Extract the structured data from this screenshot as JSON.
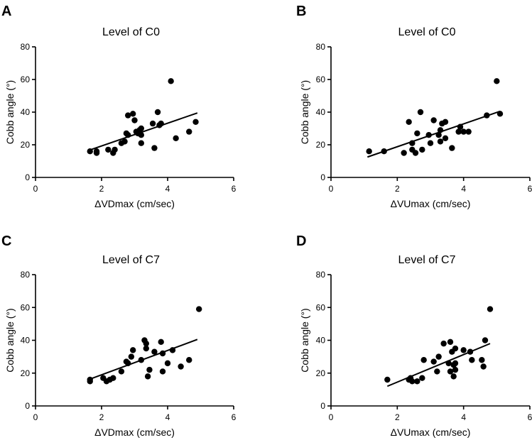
{
  "chart_data": [
    {
      "panel": "A",
      "type": "scatter",
      "title": "Level of C0",
      "xlabel": "ΔVDmax (cm/sec)",
      "ylabel": "Cobb angle (°)",
      "xlim": [
        0,
        6
      ],
      "ylim": [
        0,
        80
      ],
      "xticks": [
        0,
        2,
        4,
        6
      ],
      "yticks": [
        0,
        20,
        40,
        60,
        80
      ],
      "points": [
        [
          1.65,
          16
        ],
        [
          1.85,
          15
        ],
        [
          1.85,
          16
        ],
        [
          2.2,
          17
        ],
        [
          2.35,
          15
        ],
        [
          2.4,
          17
        ],
        [
          2.6,
          21
        ],
        [
          2.7,
          22
        ],
        [
          2.75,
          27
        ],
        [
          2.8,
          26
        ],
        [
          2.8,
          38
        ],
        [
          2.95,
          39
        ],
        [
          3.0,
          35
        ],
        [
          3.05,
          28
        ],
        [
          3.1,
          27
        ],
        [
          3.15,
          29
        ],
        [
          3.2,
          30
        ],
        [
          3.2,
          26
        ],
        [
          3.2,
          21
        ],
        [
          3.55,
          33
        ],
        [
          3.6,
          18
        ],
        [
          3.7,
          40
        ],
        [
          3.75,
          32
        ],
        [
          3.8,
          33
        ],
        [
          4.1,
          59
        ],
        [
          4.25,
          24
        ],
        [
          4.65,
          28
        ],
        [
          4.85,
          34
        ]
      ],
      "fit": {
        "x": [
          1.6,
          4.9
        ],
        "y": [
          16.5,
          39.5
        ]
      }
    },
    {
      "panel": "B",
      "type": "scatter",
      "title": "Level of C0",
      "xlabel": "ΔVUmax (cm/sec)",
      "ylabel": "Cobb angle (°)",
      "xlim": [
        0,
        6
      ],
      "ylim": [
        0,
        80
      ],
      "xticks": [
        0,
        2,
        4,
        6
      ],
      "yticks": [
        0,
        20,
        40,
        60,
        80
      ],
      "points": [
        [
          1.15,
          16
        ],
        [
          1.6,
          16
        ],
        [
          2.2,
          15
        ],
        [
          2.35,
          34
        ],
        [
          2.45,
          17
        ],
        [
          2.45,
          21
        ],
        [
          2.55,
          15
        ],
        [
          2.6,
          27
        ],
        [
          2.7,
          40
        ],
        [
          2.75,
          17
        ],
        [
          2.95,
          26
        ],
        [
          3.0,
          21
        ],
        [
          3.1,
          35
        ],
        [
          3.25,
          26
        ],
        [
          3.3,
          22
        ],
        [
          3.3,
          29
        ],
        [
          3.35,
          33
        ],
        [
          3.45,
          34
        ],
        [
          3.45,
          24
        ],
        [
          3.65,
          18
        ],
        [
          3.85,
          28
        ],
        [
          3.9,
          31
        ],
        [
          4.0,
          28
        ],
        [
          4.15,
          28
        ],
        [
          4.7,
          38
        ],
        [
          5.0,
          59
        ],
        [
          5.1,
          39
        ]
      ],
      "fit": {
        "x": [
          1.1,
          5.1
        ],
        "y": [
          12.5,
          40.5
        ]
      }
    },
    {
      "panel": "C",
      "type": "scatter",
      "title": "Level of C7",
      "xlabel": "ΔVDmax (cm/sec)",
      "ylabel": "Cobb angle (°)",
      "xlim": [
        0,
        6
      ],
      "ylim": [
        0,
        80
      ],
      "xticks": [
        0,
        2,
        4,
        6
      ],
      "yticks": [
        0,
        20,
        40,
        60,
        80
      ],
      "points": [
        [
          1.65,
          16
        ],
        [
          1.65,
          15
        ],
        [
          2.05,
          17
        ],
        [
          2.15,
          15
        ],
        [
          2.25,
          16
        ],
        [
          2.35,
          17
        ],
        [
          2.6,
          21
        ],
        [
          2.75,
          27
        ],
        [
          2.8,
          26
        ],
        [
          2.9,
          30
        ],
        [
          2.95,
          34
        ],
        [
          3.2,
          28
        ],
        [
          3.3,
          40
        ],
        [
          3.35,
          38
        ],
        [
          3.35,
          35
        ],
        [
          3.4,
          18
        ],
        [
          3.45,
          22
        ],
        [
          3.6,
          33
        ],
        [
          3.8,
          39
        ],
        [
          3.85,
          32
        ],
        [
          3.85,
          21
        ],
        [
          4.0,
          26
        ],
        [
          4.15,
          34
        ],
        [
          4.4,
          24
        ],
        [
          4.65,
          28
        ],
        [
          4.95,
          59
        ]
      ],
      "fit": {
        "x": [
          1.6,
          4.9
        ],
        "y": [
          16,
          40.5
        ]
      }
    },
    {
      "panel": "D",
      "type": "scatter",
      "title": "Level of C7",
      "xlabel": "ΔVUmax (cm/sec)",
      "ylabel": "Cobb angle (°)",
      "xlim": [
        0,
        6
      ],
      "ylim": [
        0,
        80
      ],
      "xticks": [
        0,
        2,
        4,
        6
      ],
      "yticks": [
        0,
        20,
        40,
        60,
        80
      ],
      "points": [
        [
          1.7,
          16
        ],
        [
          2.35,
          16
        ],
        [
          2.4,
          17
        ],
        [
          2.45,
          15
        ],
        [
          2.6,
          15
        ],
        [
          2.75,
          17
        ],
        [
          2.8,
          28
        ],
        [
          3.1,
          27
        ],
        [
          3.2,
          21
        ],
        [
          3.25,
          30
        ],
        [
          3.4,
          38
        ],
        [
          3.55,
          26
        ],
        [
          3.6,
          39
        ],
        [
          3.6,
          21
        ],
        [
          3.65,
          33
        ],
        [
          3.7,
          25
        ],
        [
          3.7,
          18
        ],
        [
          3.75,
          35
        ],
        [
          3.75,
          22
        ],
        [
          3.75,
          26
        ],
        [
          4.0,
          34
        ],
        [
          4.2,
          33
        ],
        [
          4.25,
          28
        ],
        [
          4.55,
          28
        ],
        [
          4.6,
          24
        ],
        [
          4.65,
          40
        ],
        [
          4.8,
          59
        ]
      ],
      "fit": {
        "x": [
          1.7,
          4.8
        ],
        "y": [
          12,
          38
        ]
      }
    }
  ]
}
